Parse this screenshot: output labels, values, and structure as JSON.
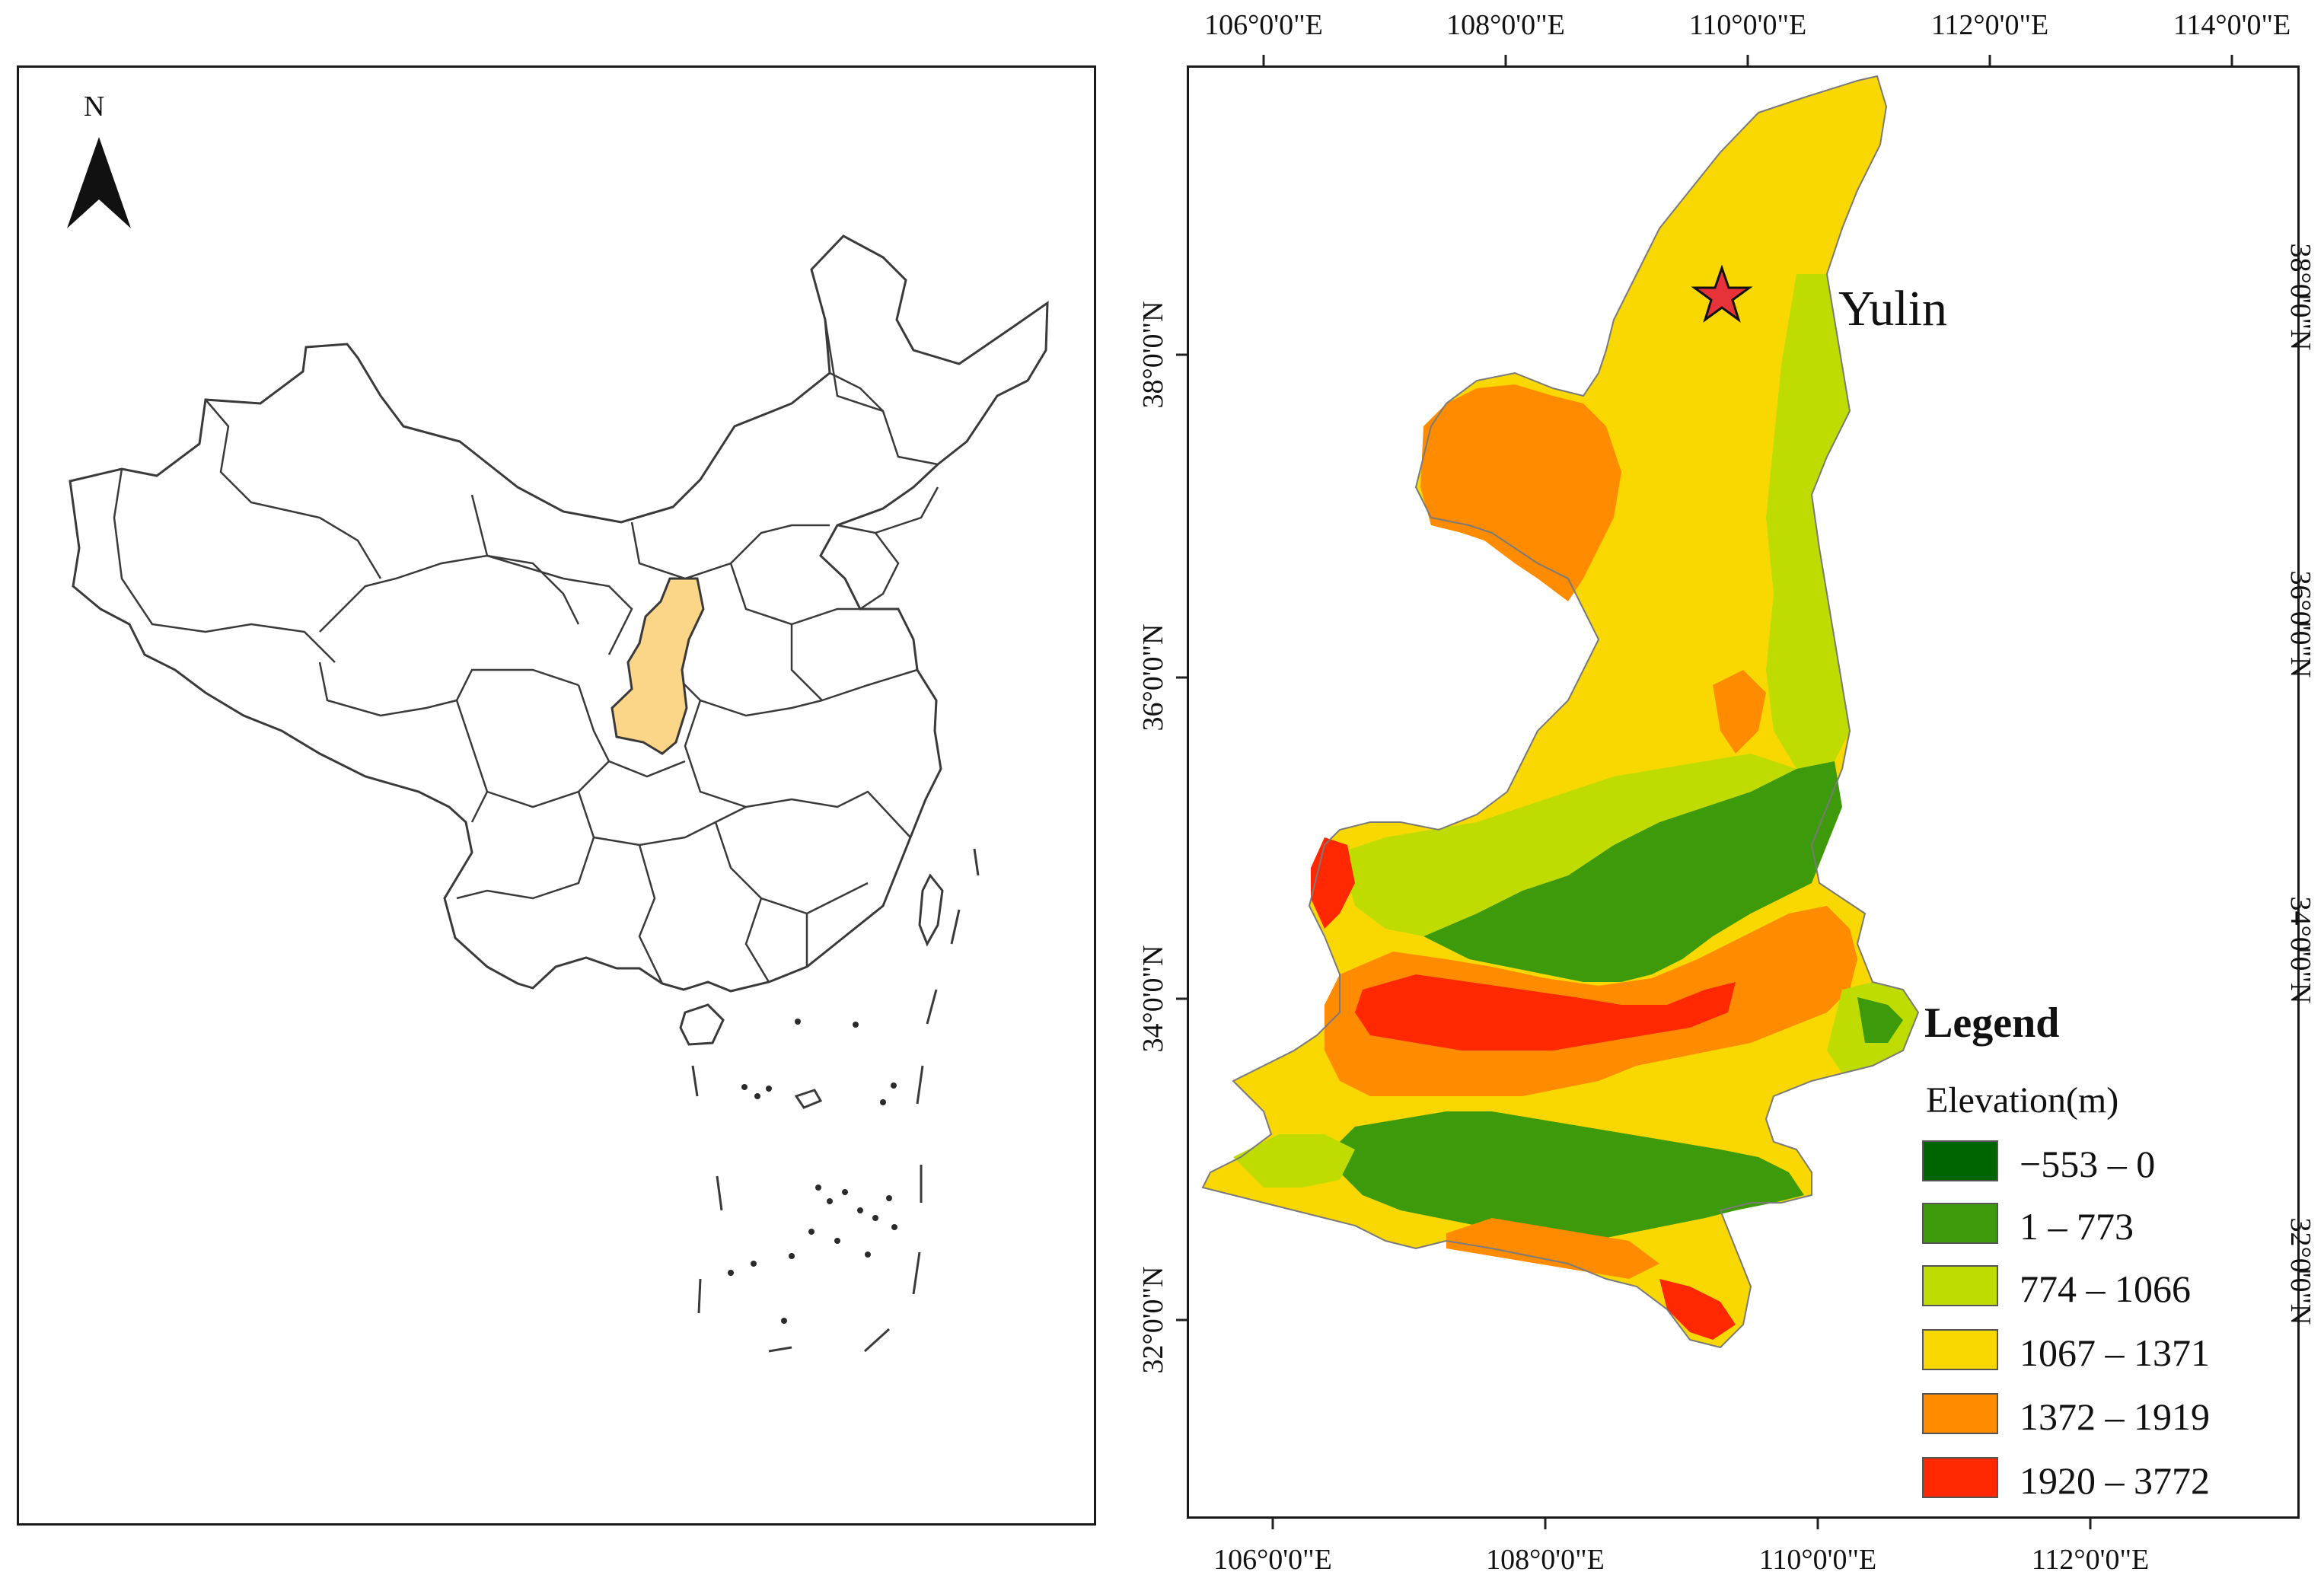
{
  "left_map": {
    "north_arrow_label": "N",
    "highlight_color": "#fbd689",
    "outline_color": "#3a3a3a",
    "north_arrow_icon": "north-arrow-icon"
  },
  "right_map": {
    "top_lon_labels": [
      "106°0'0\"E",
      "108°0'0\"E",
      "110°0'0\"E",
      "112°0'0\"E",
      "114°0'0\"E"
    ],
    "bottom_lon_labels": [
      "106°0'0\"E",
      "108°0'0\"E",
      "110°0'0\"E",
      "112°0'0\"E"
    ],
    "left_lat_labels": [
      "38°0'0\"N",
      "36°0'0\"N",
      "34°0'0\"N",
      "32°0'0\"N"
    ],
    "right_lat_labels": [
      "38°0'0\"N",
      "36°0'0\"N",
      "34°0'0\"N",
      "32°0'0\"N"
    ],
    "city": {
      "name": "Yulin",
      "marker_icon": "star-icon",
      "marker_color": "#e8323a"
    }
  },
  "legend": {
    "title": "Legend",
    "subtitle": "Elevation(m)",
    "items": [
      {
        "label": "−553 – 0",
        "color": "#006400"
      },
      {
        "label": "1 – 773",
        "color": "#3c9a0b"
      },
      {
        "label": "774 – 1066",
        "color": "#bedc00"
      },
      {
        "label": "1067 – 1371",
        "color": "#f8d800"
      },
      {
        "label": "1372 – 1919",
        "color": "#ff8c00"
      },
      {
        "label": "1920 – 3772",
        "color": "#ff2800"
      }
    ]
  }
}
